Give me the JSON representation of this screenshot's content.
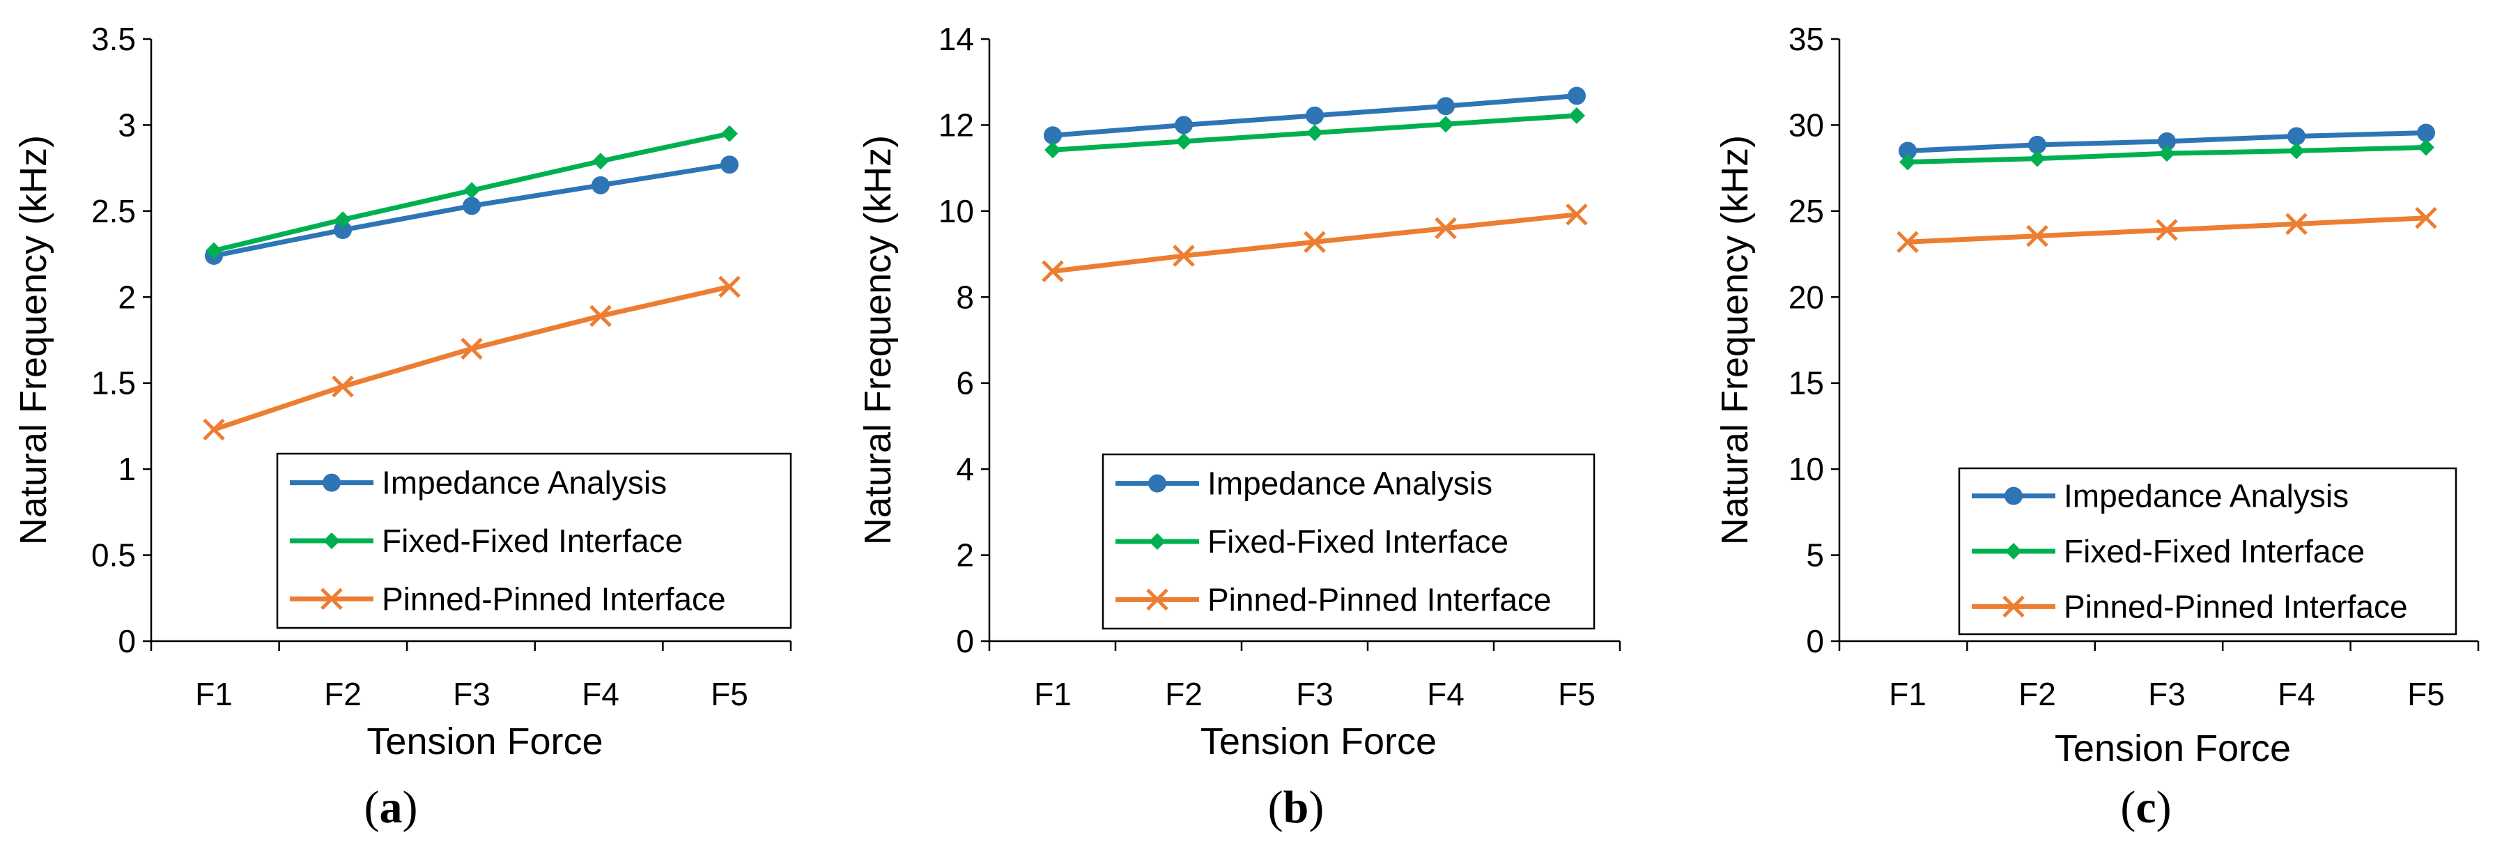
{
  "chart_data": [
    {
      "type": "line",
      "panel_label": "a",
      "categories": [
        "F1",
        "F2",
        "F3",
        "F4",
        "F5"
      ],
      "xlabel": "Tension Force",
      "ylabel": "Natural Frequency (kHz)",
      "ylim": [
        0,
        3.5
      ],
      "yticks": [
        "0",
        "0.5",
        "1",
        "1.5",
        "2",
        "2.5",
        "3",
        "3.5"
      ],
      "legend_position": "bottom-right",
      "series": [
        {
          "name": "Impedance Analysis",
          "color": "#2E75B6",
          "marker": "circle",
          "values": [
            2.24,
            2.39,
            2.53,
            2.65,
            2.77
          ]
        },
        {
          "name": "Fixed-Fixed Interface",
          "color": "#00B050",
          "marker": "diamond",
          "values": [
            2.27,
            2.45,
            2.62,
            2.79,
            2.95
          ]
        },
        {
          "name": "Pinned-Pinned Interface",
          "color": "#ED7D31",
          "marker": "x",
          "values": [
            1.23,
            1.48,
            1.7,
            1.89,
            2.06
          ]
        }
      ]
    },
    {
      "type": "line",
      "panel_label": "b",
      "categories": [
        "F1",
        "F2",
        "F3",
        "F4",
        "F5"
      ],
      "xlabel": "Tension Force",
      "ylabel": "Natural Frequency (kHz)",
      "ylim": [
        0,
        14
      ],
      "yticks": [
        "0",
        "2",
        "4",
        "6",
        "8",
        "10",
        "12",
        "14"
      ],
      "legend_position": "bottom-right",
      "series": [
        {
          "name": "Impedance Analysis",
          "color": "#2E75B6",
          "marker": "circle",
          "values": [
            11.76,
            12.0,
            12.22,
            12.44,
            12.68
          ]
        },
        {
          "name": "Fixed-Fixed Interface",
          "color": "#00B050",
          "marker": "diamond",
          "values": [
            11.42,
            11.62,
            11.82,
            12.02,
            12.22
          ]
        },
        {
          "name": "Pinned-Pinned Interface",
          "color": "#ED7D31",
          "marker": "x",
          "values": [
            8.6,
            8.96,
            9.28,
            9.6,
            9.92
          ]
        }
      ]
    },
    {
      "type": "line",
      "panel_label": "c",
      "categories": [
        "F1",
        "F2",
        "F3",
        "F4",
        "F5"
      ],
      "xlabel": "Tension Force",
      "ylabel": "Natural Frequency (kHz)",
      "ylim": [
        0,
        35
      ],
      "yticks": [
        "0",
        "5",
        "10",
        "15",
        "20",
        "25",
        "30",
        "35"
      ],
      "legend_position": "bottom-right",
      "series": [
        {
          "name": "Impedance Analysis",
          "color": "#2E75B6",
          "marker": "circle",
          "values": [
            28.5,
            28.85,
            29.05,
            29.35,
            29.55
          ]
        },
        {
          "name": "Fixed-Fixed Interface",
          "color": "#00B050",
          "marker": "diamond",
          "values": [
            27.85,
            28.05,
            28.35,
            28.5,
            28.7
          ]
        },
        {
          "name": "Pinned-Pinned Interface",
          "color": "#ED7D31",
          "marker": "x",
          "values": [
            23.2,
            23.55,
            23.9,
            24.25,
            24.6
          ]
        }
      ]
    }
  ]
}
